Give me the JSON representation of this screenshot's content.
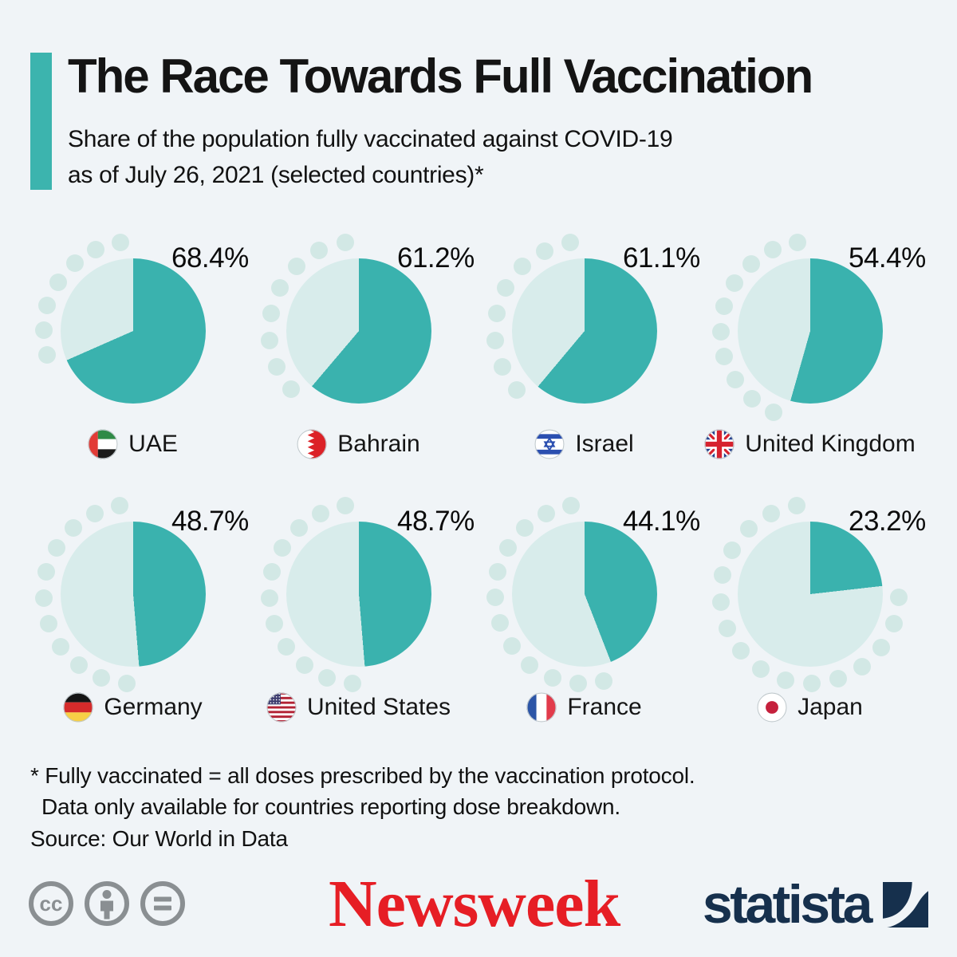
{
  "header": {
    "title": "The Race Towards Full Vaccination",
    "subtitle": "Share of the population fully vaccinated against COVID-19\nas of July 26, 2021 (selected countries)*",
    "accent_color": "#3cb4ae"
  },
  "chart_data": {
    "type": "pie",
    "title": "The Race Towards Full Vaccination",
    "subtitle": "Share of the population fully vaccinated against COVID-19 as of July 26, 2021 (selected countries)*",
    "unit": "%",
    "layout": {
      "small_multiples": true,
      "grid": "4 columns x 2 rows",
      "start_angle_deg": 0,
      "direction": "clockwise",
      "decorative_dots": "one dot per ~5% of unvaccinated share along remainder arc"
    },
    "colors": {
      "filled": "#3ab2ae",
      "remainder": "#d8eceb",
      "dots": "#d2e8e5"
    },
    "series": [
      {
        "country": "UAE",
        "value": 68.4,
        "label": "68.4%",
        "flag": "uae-flag-icon"
      },
      {
        "country": "Bahrain",
        "value": 61.2,
        "label": "61.2%",
        "flag": "bahrain-flag-icon"
      },
      {
        "country": "Israel",
        "value": 61.1,
        "label": "61.1%",
        "flag": "israel-flag-icon"
      },
      {
        "country": "United Kingdom",
        "value": 54.4,
        "label": "54.4%",
        "flag": "uk-flag-icon"
      },
      {
        "country": "Germany",
        "value": 48.7,
        "label": "48.7%",
        "flag": "germany-flag-icon"
      },
      {
        "country": "United States",
        "value": 48.7,
        "label": "48.7%",
        "flag": "us-flag-icon"
      },
      {
        "country": "France",
        "value": 44.1,
        "label": "44.1%",
        "flag": "france-flag-icon"
      },
      {
        "country": "Japan",
        "value": 23.2,
        "label": "23.2%",
        "flag": "japan-flag-icon"
      }
    ]
  },
  "footnotes": {
    "line1": "* Fully vaccinated = all doses prescribed by the vaccination protocol.",
    "line2": "Data only available for countries reporting dose breakdown.",
    "source": "Source: Our World in Data"
  },
  "footer": {
    "license_icons": [
      "cc-icon",
      "attribution-person-icon",
      "equals-icon"
    ],
    "newsweek_label": "Newsweek",
    "newsweek_color": "#e61e25",
    "statista_label": "statista",
    "statista_color": "#16304d"
  }
}
